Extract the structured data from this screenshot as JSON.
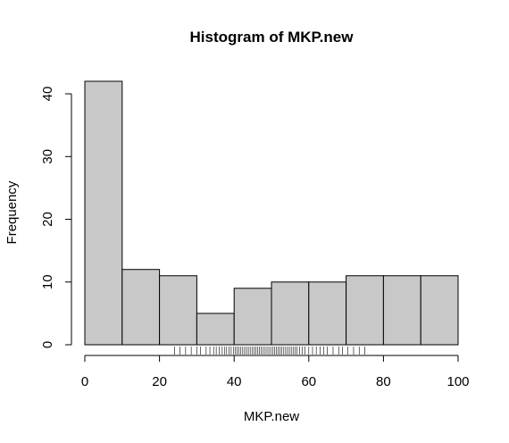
{
  "chart_data": {
    "type": "bar",
    "title": "Histogram of MKP.new",
    "xlabel": "MKP.new",
    "ylabel": "Frequency",
    "breaks": [
      0,
      10,
      20,
      30,
      40,
      50,
      60,
      70,
      80,
      90,
      100
    ],
    "values": [
      42,
      12,
      11,
      5,
      9,
      10,
      10,
      11,
      11,
      11
    ],
    "xlim": [
      0,
      100
    ],
    "ylim": [
      0,
      42
    ],
    "xticks": [
      0,
      20,
      40,
      60,
      80,
      100
    ],
    "yticks": [
      0,
      10,
      20,
      30,
      40
    ],
    "grid": false,
    "legend": "none",
    "bar_color": "#c8c8c8",
    "rug": [
      24,
      25.5,
      27,
      28.5,
      30,
      31,
      32.5,
      33.5,
      34.5,
      35.2,
      36,
      36.8,
      37.5,
      38,
      38.6,
      39.2,
      39.8,
      40.3,
      40.8,
      41.3,
      41.8,
      42.3,
      42.8,
      43.3,
      43.8,
      44.3,
      44.8,
      45.3,
      45.8,
      46.3,
      46.8,
      47.3,
      47.8,
      48.3,
      48.8,
      49.3,
      49.8,
      50.3,
      50.8,
      51.3,
      51.8,
      52.3,
      52.8,
      53.3,
      53.8,
      54.3,
      54.8,
      55.3,
      55.8,
      56.3,
      56.8,
      57.5,
      58.2,
      59,
      60,
      61,
      62,
      63,
      64,
      65,
      66.5,
      68,
      69,
      70.5,
      72,
      73.5,
      75
    ]
  }
}
